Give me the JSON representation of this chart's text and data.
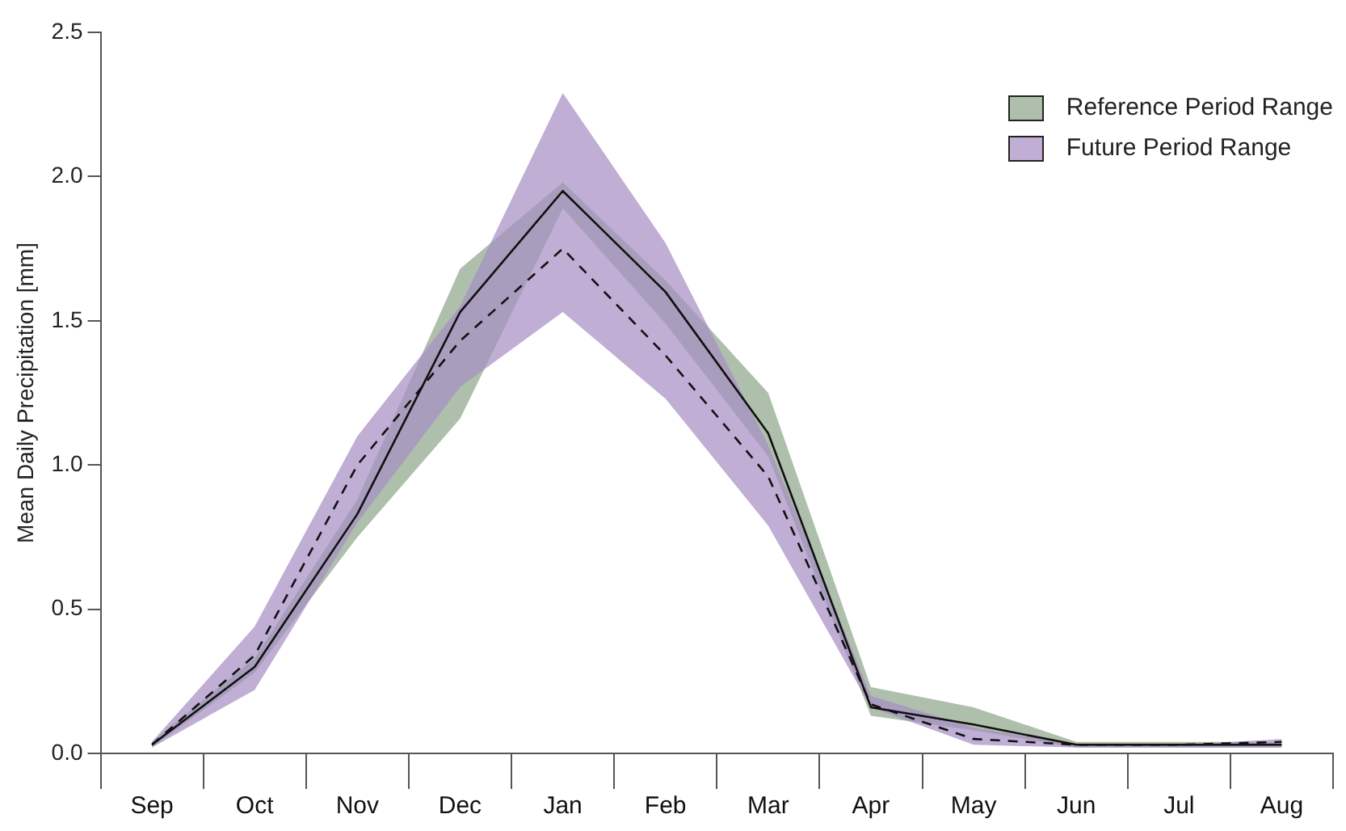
{
  "chart_data": {
    "type": "line",
    "ylabel": "Mean Daily Precipitation [mm]",
    "categories": [
      "Sep",
      "Oct",
      "Nov",
      "Dec",
      "Jan",
      "Feb",
      "Mar",
      "Apr",
      "May",
      "Jun",
      "Jul",
      "Aug"
    ],
    "ylim": [
      0,
      2.5
    ],
    "yticks": [
      {
        "value": 0,
        "label": "0.0"
      },
      0.5,
      {
        "value": 1,
        "label": "1.0"
      },
      1.5,
      {
        "value": 2,
        "label": "2.0"
      },
      2.5
    ],
    "grid": false,
    "legend": "top right",
    "marker": "none",
    "series": [
      {
        "name": "Future Period Range",
        "color": "#a88fc4",
        "values": [
          null,
          null,
          null,
          null,
          null,
          null,
          null,
          null,
          null,
          null,
          null,
          null
        ],
        "lower": [
          0.02,
          0.22,
          0.8,
          1.27,
          1.53,
          1.23,
          0.79,
          0.16,
          0.03,
          0.02,
          0.02,
          0.02
        ],
        "upper": [
          0.04,
          0.44,
          1.1,
          1.55,
          2.29,
          1.77,
          1.07,
          0.2,
          0.09,
          0.03,
          0.03,
          0.05
        ]
      },
      {
        "name": "Reference Period Range",
        "color": "#8fa88a",
        "values": [
          null,
          null,
          null,
          null,
          null,
          null,
          null,
          null,
          null,
          null,
          null,
          null
        ],
        "lower": [
          0.02,
          0.28,
          0.75,
          1.16,
          1.89,
          1.49,
          1.03,
          0.13,
          0.08,
          0.02,
          0.02,
          0.02
        ],
        "upper": [
          0.04,
          0.33,
          0.88,
          1.68,
          1.98,
          1.64,
          1.25,
          0.23,
          0.16,
          0.04,
          0.04,
          0.04
        ]
      },
      {
        "color": "#111111",
        "type": "line",
        "line_style": "dashed",
        "values": [
          0.03,
          0.34,
          1.0,
          1.43,
          1.75,
          1.38,
          0.96,
          0.17,
          0.05,
          0.03,
          0.03,
          0.04
        ]
      },
      {
        "color": "#111111",
        "type": "line",
        "line_style": "solid",
        "values": [
          0.03,
          0.3,
          0.83,
          1.53,
          1.95,
          1.6,
          1.11,
          0.16,
          0.1,
          0.03,
          0.03,
          0.03
        ]
      }
    ]
  }
}
